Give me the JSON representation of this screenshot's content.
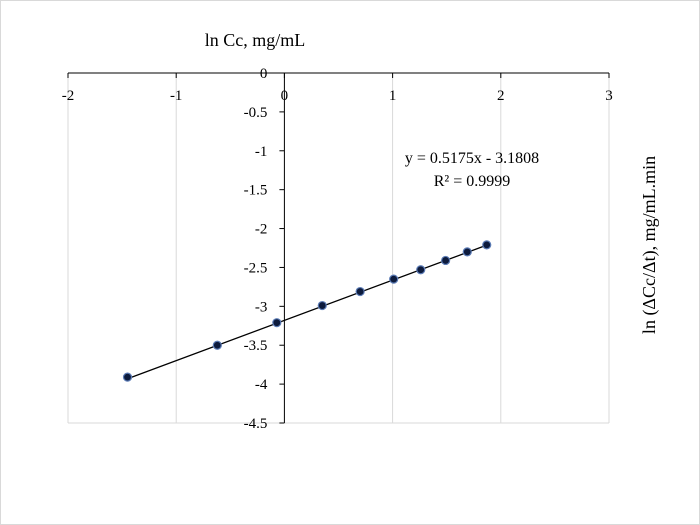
{
  "chart_data": {
    "type": "scatter",
    "xlabel": "ln Cc, mg/mL",
    "ylabel": "ln (ΔCc/Δt), mg/mL.min",
    "xlim": [
      -2,
      3
    ],
    "ylim": [
      -4.5,
      0
    ],
    "x_ticks": [
      "-2",
      "-1",
      "0",
      "1",
      "2",
      "3"
    ],
    "y_ticks": [
      "0",
      "-0.5",
      "-1",
      "-1.5",
      "-2",
      "-2.5",
      "-3",
      "-3.5",
      "-4",
      "-4.5"
    ],
    "x_tick_values": [
      -2,
      -1,
      0,
      1,
      2,
      3
    ],
    "y_tick_values": [
      0,
      -0.5,
      -1,
      -1.5,
      -2,
      -2.5,
      -3,
      -3.5,
      -4,
      -4.5
    ],
    "grid": "vertical",
    "series": [
      {
        "x": [
          -1.45,
          -0.62,
          -0.07,
          0.35,
          0.7,
          1.01,
          1.26,
          1.49,
          1.69,
          1.87
        ],
        "y": [
          -3.91,
          -3.5,
          -3.21,
          -2.99,
          -2.81,
          -2.65,
          -2.53,
          -2.41,
          -2.3,
          -2.21
        ],
        "marker_color": "#0d1b3d"
      }
    ],
    "trendline": {
      "slope": 0.5175,
      "intercept": -3.1808,
      "equation": "y = 0.5175x - 3.1808",
      "r2": "R² = 0.9999"
    }
  }
}
